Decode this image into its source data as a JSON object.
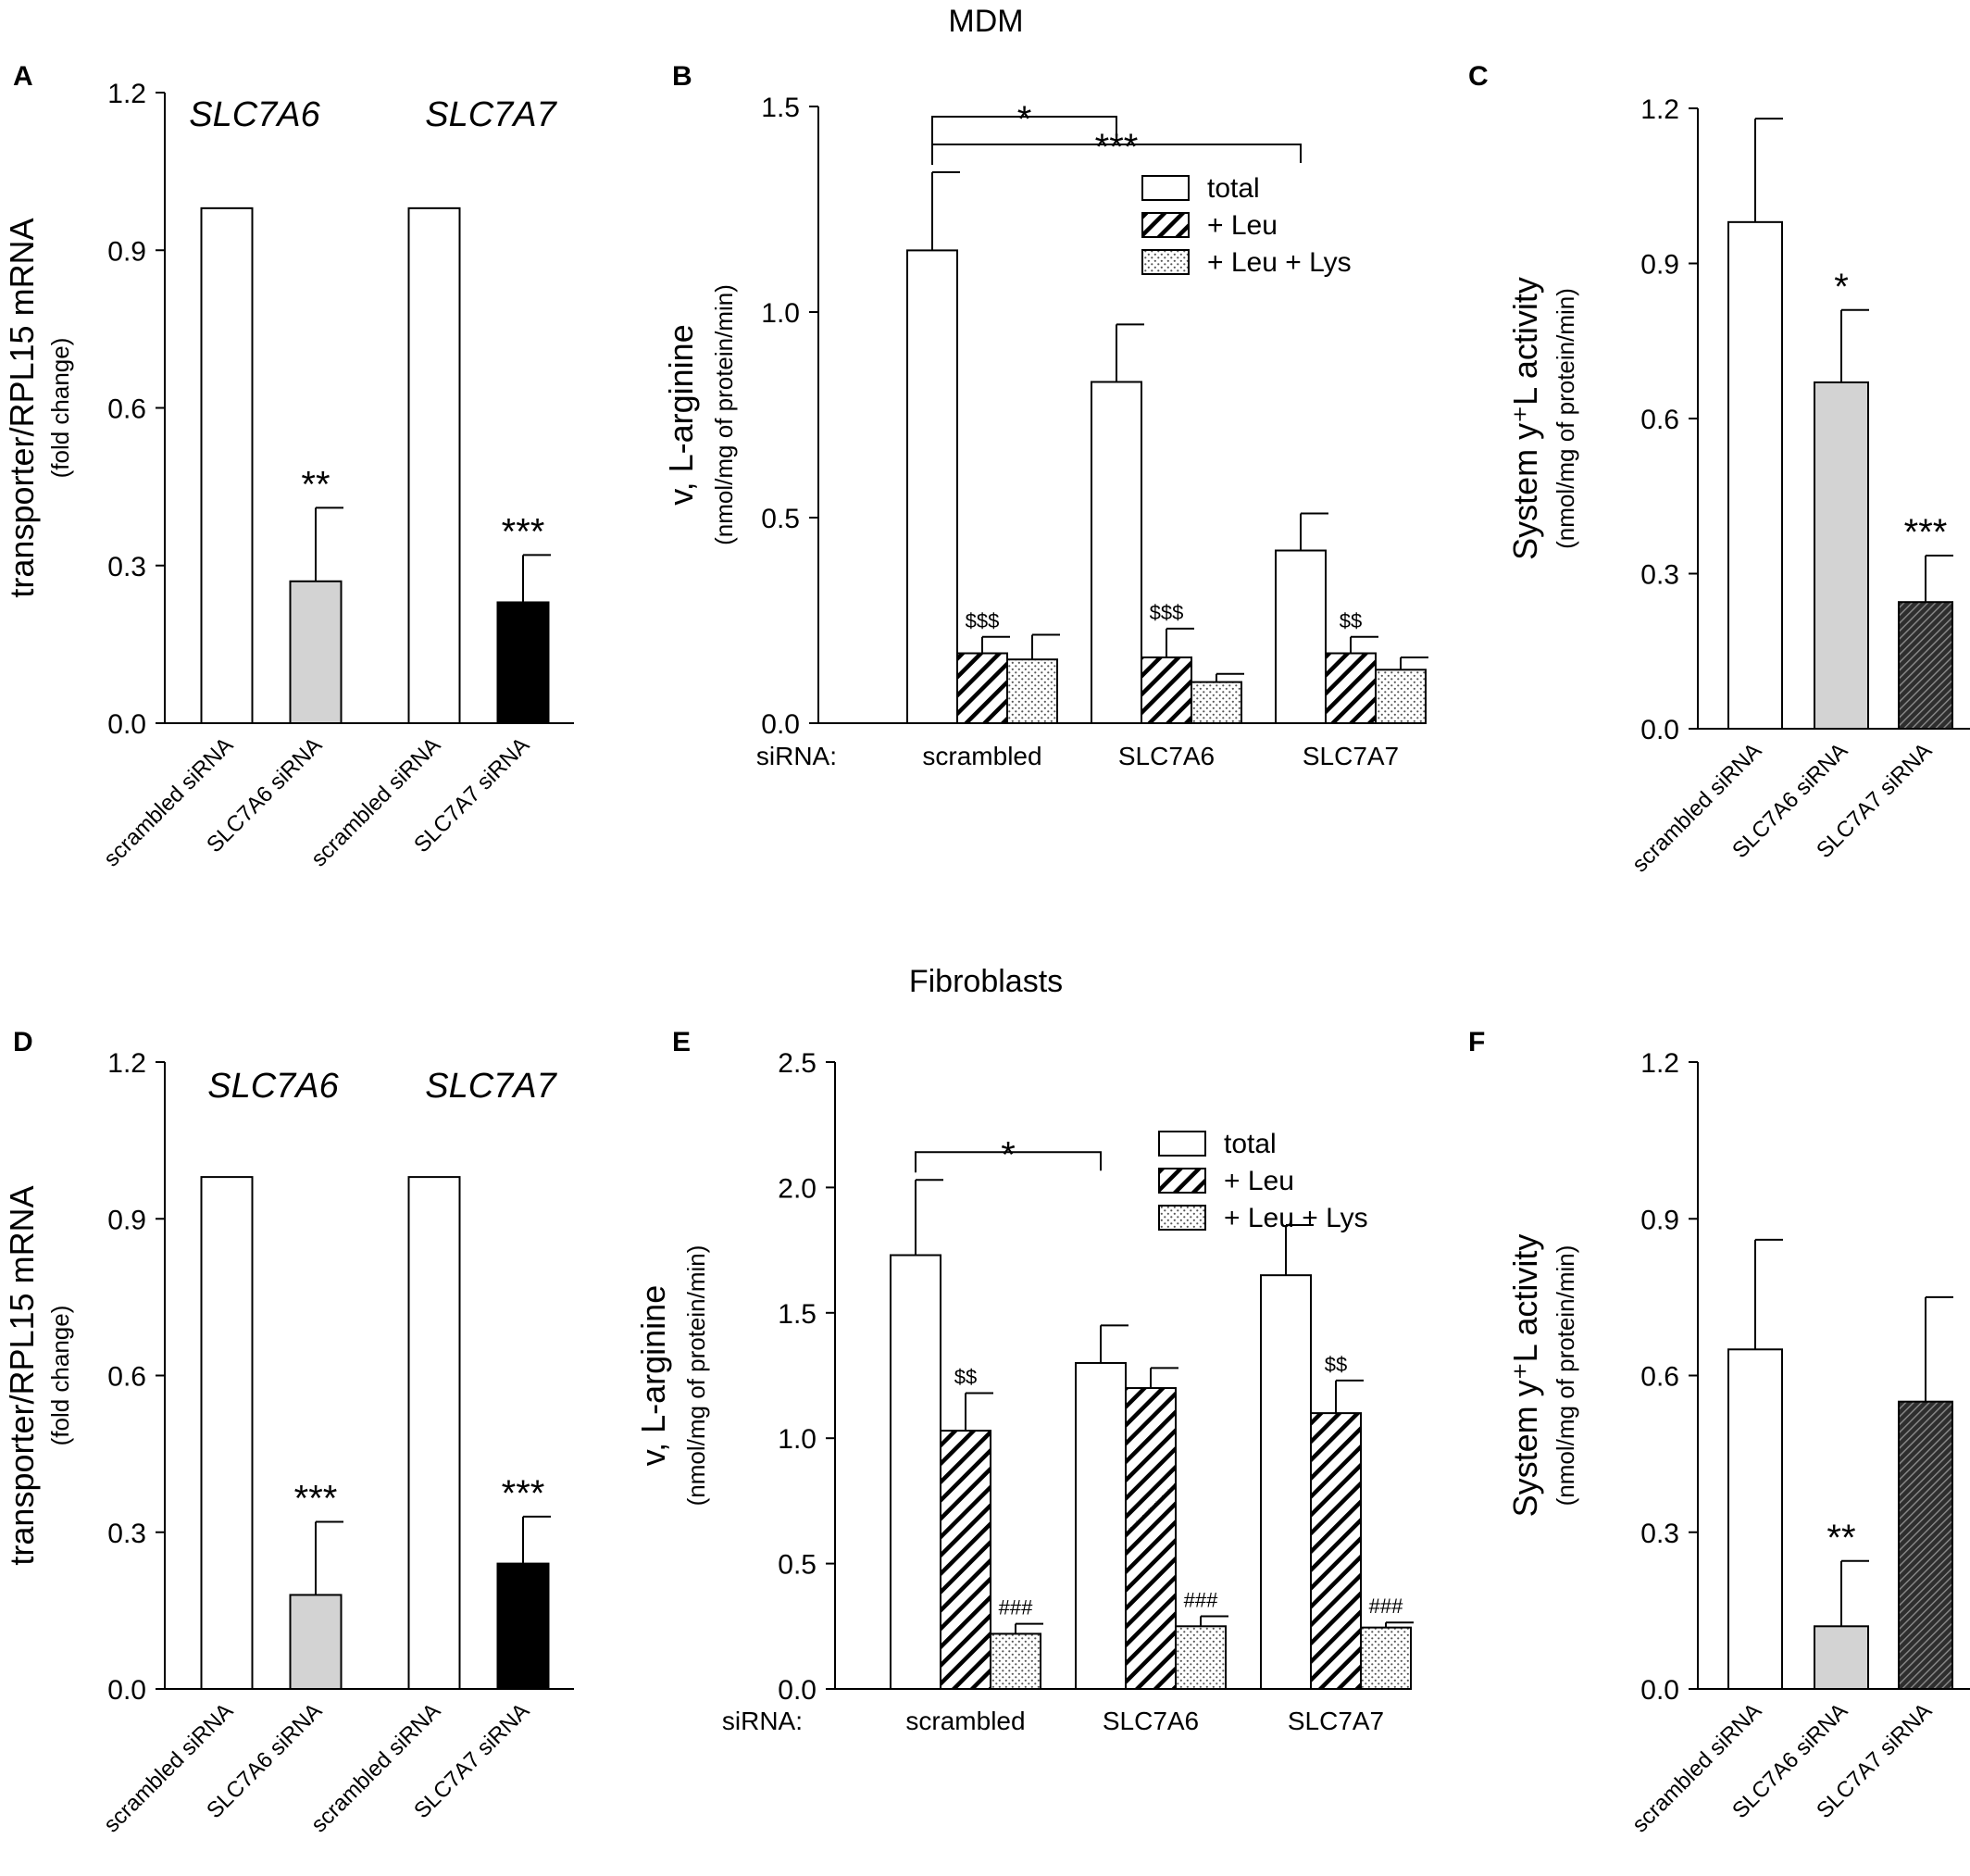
{
  "sections": {
    "top": "MDM",
    "bottom": "Fibroblasts"
  },
  "chart_data": [
    {
      "panel": "A",
      "type": "bar",
      "group_titles": [
        "SLC7A6",
        "SLC7A7"
      ],
      "ylabel": "transporter/RPL15 mRNA",
      "ylabel_sub": "(fold change)",
      "ylim": [
        0,
        1.2
      ],
      "yticks": [
        "0.0",
        "0.3",
        "0.6",
        "0.9",
        "1.2"
      ],
      "categories": [
        "scrambled siRNA",
        "SLC7A6 siRNA",
        "scrambled siRNA",
        "SLC7A7 siRNA"
      ],
      "values": [
        0.98,
        0.27,
        0.98,
        0.23
      ],
      "errors": [
        0,
        0.14,
        0,
        0.09
      ],
      "fills": [
        "white",
        "lightgray",
        "white",
        "black"
      ],
      "annotations": [
        "",
        "**",
        "",
        "***"
      ]
    },
    {
      "panel": "B",
      "type": "bar",
      "ylabel": "v, L-arginine",
      "ylabel_sub": "(nmol/mg of  protein/min)",
      "ylim": [
        0,
        1.5
      ],
      "yticks": [
        "0.0",
        "0.5",
        "1.0",
        "1.5"
      ],
      "x_prefix": "siRNA:",
      "categories": [
        "scrambled",
        "SLC7A6",
        "SLC7A7"
      ],
      "legend": [
        "total",
        "+ Leu",
        "+ Leu + Lys"
      ],
      "legend_position": "top-right",
      "series": [
        {
          "name": "total",
          "fill": "white",
          "values": [
            1.15,
            0.83,
            0.42
          ],
          "errors": [
            0.19,
            0.14,
            0.09
          ],
          "annotations": [
            "",
            "",
            ""
          ]
        },
        {
          "name": "+ Leu",
          "fill": "hatch",
          "values": [
            0.17,
            0.16,
            0.17
          ],
          "errors": [
            0.04,
            0.07,
            0.04
          ],
          "annotations": [
            "$$$",
            "$$$",
            "$$"
          ]
        },
        {
          "name": "+ Leu + Lys",
          "fill": "dots",
          "values": [
            0.155,
            0.1,
            0.13
          ],
          "errors": [
            0.06,
            0.02,
            0.03
          ],
          "annotations": [
            "",
            "",
            ""
          ]
        }
      ],
      "brackets": [
        {
          "from": 0,
          "to": 1,
          "label": "*"
        },
        {
          "from": 0,
          "to": 2,
          "label": "***"
        }
      ]
    },
    {
      "panel": "C",
      "type": "bar",
      "ylabel": "System y⁺L activity",
      "ylabel_sub": "(nmol/mg of  protein/min)",
      "ylim": [
        0,
        1.2
      ],
      "yticks": [
        "0.0",
        "0.3",
        "0.6",
        "0.9",
        "1.2"
      ],
      "categories": [
        "scrambled siRNA",
        "SLC7A6 siRNA",
        "SLC7A7 siRNA"
      ],
      "values": [
        0.98,
        0.67,
        0.245
      ],
      "errors": [
        0.2,
        0.14,
        0.09
      ],
      "fills": [
        "white",
        "lightgray",
        "darkhatch"
      ],
      "annotations": [
        "",
        "*",
        "***"
      ]
    },
    {
      "panel": "D",
      "type": "bar",
      "group_titles": [
        "SLC7A6",
        "SLC7A7"
      ],
      "ylabel": "transporter/RPL15 mRNA",
      "ylabel_sub": "(fold change)",
      "ylim": [
        0,
        1.2
      ],
      "yticks": [
        "0.0",
        "0.3",
        "0.6",
        "0.9",
        "1.2"
      ],
      "categories": [
        "scrambled siRNA",
        "SLC7A6 siRNA",
        "scrambled siRNA",
        "SLC7A7 siRNA"
      ],
      "values": [
        0.98,
        0.18,
        0.98,
        0.24
      ],
      "errors": [
        0,
        0.14,
        0,
        0.09
      ],
      "fills": [
        "white",
        "lightgray",
        "white",
        "black"
      ],
      "annotations": [
        "",
        "***",
        "",
        "***"
      ]
    },
    {
      "panel": "E",
      "type": "bar",
      "ylabel": "v, L-arginine",
      "ylabel_sub": "(nmol/mg of  protein/min)",
      "ylim": [
        0,
        2.5
      ],
      "yticks": [
        "0.0",
        "0.5",
        "1.0",
        "1.5",
        "2.0",
        "2.5"
      ],
      "x_prefix": "siRNA:",
      "categories": [
        "scrambled",
        "SLC7A6",
        "SLC7A7"
      ],
      "legend": [
        "total",
        "+ Leu",
        "+ Leu + Lys"
      ],
      "legend_position": "top-right",
      "series": [
        {
          "name": "total",
          "fill": "white",
          "values": [
            1.73,
            1.3,
            1.65
          ],
          "errors": [
            0.3,
            0.15,
            0.2
          ],
          "annotations": [
            "",
            "",
            ""
          ]
        },
        {
          "name": "+ Leu",
          "fill": "hatch",
          "values": [
            1.03,
            1.2,
            1.1
          ],
          "errors": [
            0.15,
            0.08,
            0.13
          ],
          "annotations": [
            "$$",
            "",
            "$$"
          ]
        },
        {
          "name": "+ Leu + Lys",
          "fill": "dots",
          "values": [
            0.22,
            0.25,
            0.245
          ],
          "errors": [
            0.04,
            0.04,
            0.02
          ],
          "annotations": [
            "###",
            "###",
            "###"
          ]
        }
      ],
      "brackets": [
        {
          "from": 0,
          "to": 1,
          "label": "*"
        }
      ]
    },
    {
      "panel": "F",
      "type": "bar",
      "ylabel": "System y⁺L activity",
      "ylabel_sub": "(nmol/mg of  protein/min)",
      "ylim": [
        0,
        1.2
      ],
      "yticks": [
        "0.0",
        "0.3",
        "0.6",
        "0.9",
        "1.2"
      ],
      "categories": [
        "scrambled siRNA",
        "SLC7A6 siRNA",
        "SLC7A7 siRNA"
      ],
      "values": [
        0.65,
        0.12,
        0.55
      ],
      "errors": [
        0.21,
        0.125,
        0.2
      ],
      "fills": [
        "white",
        "lightgray",
        "darkhatch"
      ],
      "annotations": [
        "",
        "**",
        ""
      ]
    }
  ]
}
